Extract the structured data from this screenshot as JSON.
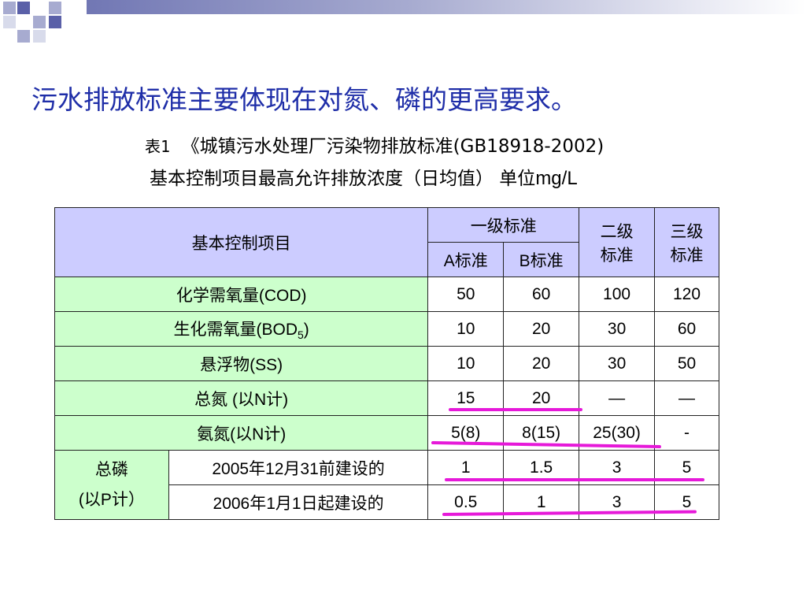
{
  "slide": {
    "headline": "污水排放标准主要体现在对氮、磷的更高要求。",
    "caption_prefix": "表1",
    "caption_title": "《城镇污水处理厂污染物排放标准(GB18918-2002)",
    "caption_sub": "基本控制项目最高允许排放浓度（日均值） 单位",
    "caption_unit": "mg/L"
  },
  "colors": {
    "headline": "#1f2ea8",
    "header_fill": "#ccccff",
    "label_fill": "#ccffcc",
    "highlight": "#e619d9"
  },
  "table": {
    "header": {
      "item": "基本控制项目",
      "grade1": "一级标准",
      "grade1_a": "A标准",
      "grade1_b": "B标准",
      "grade2_l1": "二级",
      "grade2_l2": "标准",
      "grade3_l1": "三级",
      "grade3_l2": "标准"
    },
    "rows": [
      {
        "label": "化学需氧量(COD)",
        "a": "50",
        "b": "60",
        "g2": "100",
        "g3": "120"
      },
      {
        "label": "生化需氧量(BOD",
        "label_sub": "5",
        "label_end": ")",
        "a": "10",
        "b": "20",
        "g2": "30",
        "g3": "60"
      },
      {
        "label": "悬浮物(SS)",
        "a": "10",
        "b": "20",
        "g2": "30",
        "g3": "50"
      },
      {
        "label": "总氮 (以N计)",
        "a": "15",
        "b": "20",
        "g2": "—",
        "g3": "—"
      },
      {
        "label": "氨氮(以N计)",
        "a": "5(8)",
        "b": "8(15)",
        "g2": "25(30)",
        "g3": "-"
      }
    ],
    "phosphorus": {
      "label_l1": "总磷",
      "label_l2": "(以P计）",
      "rows": [
        {
          "label": "2005年12月31前建设的",
          "a": "1",
          "b": "1.5",
          "g2": "3",
          "g3": "5"
        },
        {
          "label": "2006年1月1日起建设的",
          "a": "0.5",
          "b": "1",
          "g2": "3",
          "g3": "5"
        }
      ]
    }
  }
}
